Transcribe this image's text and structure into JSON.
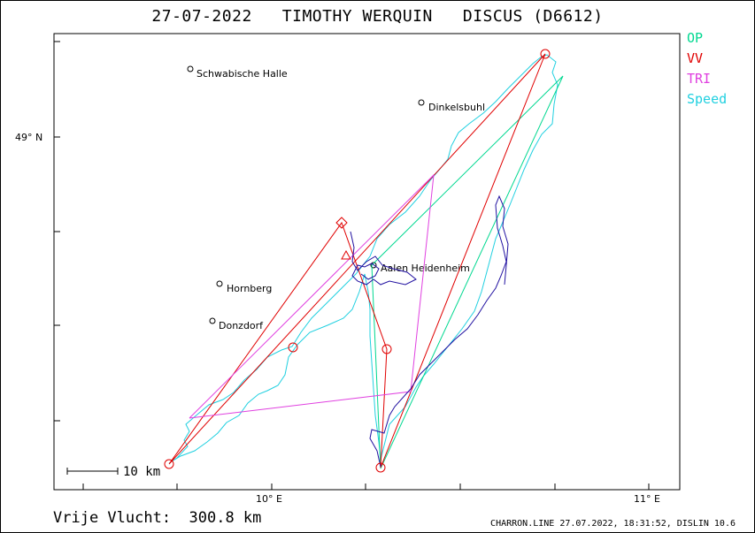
{
  "title": "27-07-2022   TIMOTHY WERQUIN   DISCUS (D6612)",
  "legend": [
    {
      "label": "OP",
      "color": "#00d890"
    },
    {
      "label": "VV",
      "color": "#e00000"
    },
    {
      "label": "TRI",
      "color": "#e040e0"
    },
    {
      "label": "Speed",
      "color": "#20d0e0"
    }
  ],
  "axes": {
    "lat_label": "49° N",
    "lon_labels": [
      "10° E",
      "11° E"
    ]
  },
  "cities": [
    {
      "name": "Schwabische Halle"
    },
    {
      "name": "Dinkelsbuhl"
    },
    {
      "name": "Aalen Heidenheim"
    },
    {
      "name": "Hornberg"
    },
    {
      "name": "Donzdorf"
    }
  ],
  "scale_label": "10 km",
  "footer": {
    "distance": "Vrije Vlucht:  300.8 km",
    "info": "CHARRON.LINE 27.07.2022, 18:31:52, DISLIN 10.6"
  }
}
